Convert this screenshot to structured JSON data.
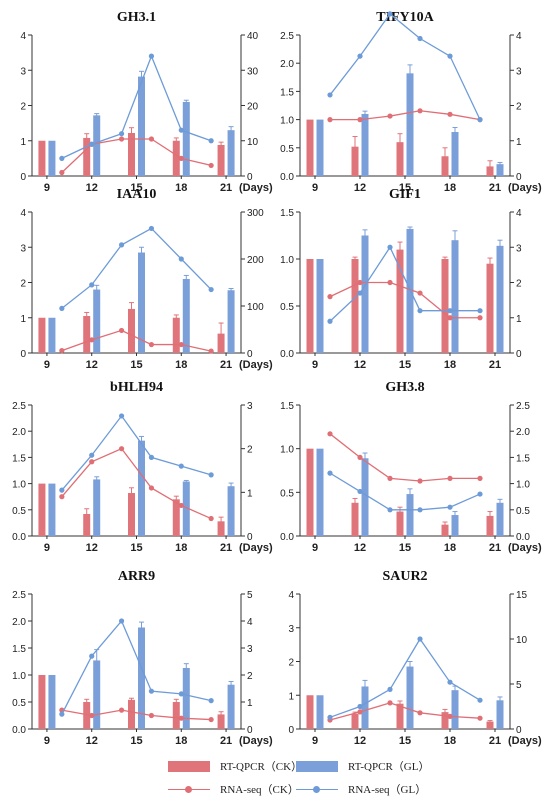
{
  "colors": {
    "bar_ck": "#e0747b",
    "bar_gl": "#7b9fd8",
    "line_ck": "#e06e75",
    "line_gl": "#6d9bd8",
    "axis": "#333333"
  },
  "legend": {
    "items": [
      {
        "key": "bar_ck",
        "kind": "bar",
        "label": "RT-QPCR（CK）"
      },
      {
        "key": "bar_gl",
        "kind": "bar",
        "label": "RT-QPCR（GL）"
      },
      {
        "key": "line_ck",
        "kind": "line",
        "label": "RNA-seq（CK）"
      },
      {
        "key": "line_gl",
        "kind": "line",
        "label": "RNA-seq（GL）"
      }
    ]
  },
  "chart_data": [
    {
      "type": "bar+line",
      "title": "GH3.1",
      "categories": [
        "9",
        "12",
        "15",
        "18",
        "21"
      ],
      "x_unit": "(Days)",
      "left_axis": {
        "ylim": [
          0,
          4
        ],
        "ticks": [
          "0",
          "1",
          "2",
          "3",
          "4"
        ]
      },
      "right_axis": {
        "ylim": [
          0,
          40
        ],
        "ticks": [
          "0",
          "10",
          "20",
          "30",
          "40"
        ]
      },
      "bars": [
        {
          "name": "RT-QPCR（CK）",
          "values": [
            1.0,
            1.08,
            1.22,
            1.0,
            0.88
          ],
          "errors": [
            0,
            0.12,
            0.15,
            0.08,
            0.08
          ]
        },
        {
          "name": "RT-QPCR（GL）",
          "values": [
            1.0,
            1.72,
            2.82,
            2.1,
            1.3
          ],
          "errors": [
            0,
            0.05,
            0.15,
            0.05,
            0.1
          ]
        }
      ],
      "lines": [
        {
          "name": "RNA-seq（CK）",
          "x": [
            10,
            12,
            14,
            16,
            18,
            20
          ],
          "values": [
            1,
            9,
            10.5,
            10.5,
            5,
            3
          ]
        },
        {
          "name": "RNA-seq（GL）",
          "x": [
            10,
            12,
            14,
            16,
            18,
            20
          ],
          "values": [
            5,
            9,
            12,
            34,
            13,
            10
          ]
        }
      ]
    },
    {
      "type": "bar+line",
      "title": "TIFY10A",
      "categories": [
        "9",
        "12",
        "15",
        "18",
        "21"
      ],
      "x_unit": "(Days)",
      "left_axis": {
        "ylim": [
          0,
          2.5
        ],
        "ticks": [
          "0.0",
          "0.5",
          "1.0",
          "1.5",
          "2.0",
          "2.5"
        ]
      },
      "right_axis": {
        "ylim": [
          0,
          4
        ],
        "ticks": [
          "0",
          "1",
          "2",
          "3",
          "4"
        ]
      },
      "bars": [
        {
          "name": "RT-QPCR（CK）",
          "values": [
            1.0,
            0.52,
            0.6,
            0.35,
            0.17
          ],
          "errors": [
            0,
            0.18,
            0.15,
            0.15,
            0.1
          ]
        },
        {
          "name": "RT-QPCR（GL）",
          "values": [
            1.0,
            1.1,
            1.82,
            0.78,
            0.21
          ],
          "errors": [
            0,
            0.05,
            0.15,
            0.08,
            0.03
          ]
        }
      ],
      "lines": [
        {
          "name": "RNA-seq（CK）",
          "x": [
            10,
            12,
            14,
            16,
            18,
            20
          ],
          "values": [
            1.6,
            1.6,
            1.7,
            1.85,
            1.75,
            1.6
          ]
        },
        {
          "name": "RNA-seq（GL）",
          "x": [
            10,
            12,
            14,
            16,
            18,
            20
          ],
          "values": [
            2.3,
            3.4,
            4.6,
            3.9,
            3.4,
            1.6
          ]
        }
      ]
    },
    {
      "type": "bar+line",
      "title": "IAA10",
      "categories": [
        "9",
        "12",
        "15",
        "18",
        "21"
      ],
      "x_unit": "(Days)",
      "left_axis": {
        "ylim": [
          0,
          4
        ],
        "ticks": [
          "0",
          "1",
          "2",
          "3",
          "4"
        ]
      },
      "right_axis": {
        "ylim": [
          0,
          300
        ],
        "ticks": [
          "0",
          "100",
          "200",
          "300"
        ]
      },
      "bars": [
        {
          "name": "RT-QPCR（CK）",
          "values": [
            1.0,
            1.05,
            1.25,
            1.0,
            0.55
          ],
          "errors": [
            0,
            0.1,
            0.18,
            0.08,
            0.3
          ]
        },
        {
          "name": "RT-QPCR（GL）",
          "values": [
            1.0,
            1.8,
            2.85,
            2.1,
            1.78
          ],
          "errors": [
            0,
            0.12,
            0.15,
            0.1,
            0.05
          ]
        }
      ],
      "lines": [
        {
          "name": "RNA-seq（CK）",
          "x": [
            10,
            12,
            14,
            16,
            18,
            20
          ],
          "values": [
            5,
            28,
            48,
            18,
            18,
            4
          ]
        },
        {
          "name": "RNA-seq（GL）",
          "x": [
            10,
            12,
            14,
            16,
            18,
            20
          ],
          "values": [
            95,
            145,
            230,
            265,
            200,
            135
          ]
        }
      ]
    },
    {
      "type": "bar+line",
      "title": "GIF1",
      "categories": [
        "9",
        "12",
        "15",
        "18",
        "21"
      ],
      "x_unit": "",
      "left_axis": {
        "ylim": [
          0,
          1.5
        ],
        "ticks": [
          "0.0",
          "0.5",
          "1.0",
          "1.5"
        ]
      },
      "right_axis": {
        "ylim": [
          0,
          4
        ],
        "ticks": [
          "0",
          "1",
          "2",
          "3",
          "4"
        ]
      },
      "bars": [
        {
          "name": "RT-QPCR（CK）",
          "values": [
            1.0,
            1.0,
            1.1,
            1.0,
            0.95
          ],
          "errors": [
            0,
            0.02,
            0.08,
            0.02,
            0.06
          ]
        },
        {
          "name": "RT-QPCR（GL）",
          "values": [
            1.0,
            1.25,
            1.32,
            1.2,
            1.14
          ],
          "errors": [
            0,
            0.06,
            0.02,
            0.1,
            0.06
          ]
        }
      ],
      "lines": [
        {
          "name": "RNA-seq（CK）",
          "x": [
            10,
            12,
            14,
            16,
            18,
            20
          ],
          "values": [
            1.6,
            2.0,
            2.0,
            1.7,
            1.0,
            1.0
          ]
        },
        {
          "name": "RNA-seq（GL）",
          "x": [
            10,
            12,
            14,
            16,
            18,
            20
          ],
          "values": [
            0.9,
            1.7,
            3.0,
            1.2,
            1.2,
            1.2
          ]
        }
      ]
    },
    {
      "type": "bar+line",
      "title": "bHLH94",
      "categories": [
        "9",
        "12",
        "15",
        "18",
        "21"
      ],
      "x_unit": "(Days)",
      "left_axis": {
        "ylim": [
          0,
          2.5
        ],
        "ticks": [
          "0.0",
          "0.5",
          "1.0",
          "1.5",
          "2.0",
          "2.5"
        ]
      },
      "right_axis": {
        "ylim": [
          0,
          3
        ],
        "ticks": [
          "0",
          "1",
          "2",
          "3"
        ]
      },
      "bars": [
        {
          "name": "RT-QPCR（CK）",
          "values": [
            1.0,
            0.42,
            0.82,
            0.7,
            0.28
          ],
          "errors": [
            0,
            0.1,
            0.1,
            0.06,
            0.08
          ]
        },
        {
          "name": "RT-QPCR（GL）",
          "values": [
            1.0,
            1.08,
            1.82,
            1.04,
            0.95
          ],
          "errors": [
            0,
            0.05,
            0.08,
            0.02,
            0.06
          ]
        }
      ],
      "lines": [
        {
          "name": "RNA-seq（CK）",
          "x": [
            10,
            12,
            14,
            16,
            18,
            20
          ],
          "values": [
            0.9,
            1.7,
            2.0,
            1.1,
            0.7,
            0.4
          ]
        },
        {
          "name": "RNA-seq（GL）",
          "x": [
            10,
            12,
            14,
            16,
            18,
            20
          ],
          "values": [
            1.05,
            1.85,
            2.75,
            1.8,
            1.6,
            1.4
          ]
        }
      ]
    },
    {
      "type": "bar+line",
      "title": "GH3.8",
      "categories": [
        "9",
        "12",
        "15",
        "18",
        "21"
      ],
      "x_unit": "(Days)",
      "left_axis": {
        "ylim": [
          0,
          1.5
        ],
        "ticks": [
          "0.0",
          "0.5",
          "1.0",
          "1.5"
        ]
      },
      "right_axis": {
        "ylim": [
          0,
          2.5
        ],
        "ticks": [
          "0.0",
          "0.5",
          "1.0",
          "1.5",
          "2.0",
          "2.5"
        ]
      },
      "bars": [
        {
          "name": "RT-QPCR（CK）",
          "values": [
            1.0,
            0.38,
            0.28,
            0.13,
            0.23
          ],
          "errors": [
            0,
            0.05,
            0.05,
            0.03,
            0.05
          ]
        },
        {
          "name": "RT-QPCR（GL）",
          "values": [
            1.0,
            0.89,
            0.48,
            0.24,
            0.38
          ],
          "errors": [
            0,
            0.06,
            0.06,
            0.04,
            0.04
          ]
        }
      ],
      "lines": [
        {
          "name": "RNA-seq（CK）",
          "x": [
            10,
            12,
            14,
            16,
            18,
            20
          ],
          "values": [
            1.95,
            1.5,
            1.1,
            1.05,
            1.1,
            1.1
          ]
        },
        {
          "name": "RNA-seq（GL）",
          "x": [
            10,
            12,
            14,
            16,
            18,
            20
          ],
          "values": [
            1.2,
            0.85,
            0.5,
            0.5,
            0.55,
            0.8
          ]
        }
      ]
    },
    {
      "type": "bar+line",
      "title": "ARR9",
      "categories": [
        "9",
        "12",
        "15",
        "18",
        "21"
      ],
      "x_unit": "(Days)",
      "left_axis": {
        "ylim": [
          0,
          2.5
        ],
        "ticks": [
          "0.0",
          "0.5",
          "1.0",
          "1.5",
          "2.0",
          "2.5"
        ]
      },
      "right_axis": {
        "ylim": [
          0,
          5
        ],
        "ticks": [
          "0",
          "1",
          "2",
          "3",
          "4",
          "5"
        ]
      },
      "bars": [
        {
          "name": "RT-QPCR（CK）",
          "values": [
            1.0,
            0.5,
            0.54,
            0.5,
            0.27
          ],
          "errors": [
            0,
            0.05,
            0.03,
            0.05,
            0.05
          ]
        },
        {
          "name": "RT-QPCR（GL）",
          "values": [
            1.0,
            1.27,
            1.88,
            1.13,
            0.82
          ],
          "errors": [
            0,
            0.2,
            0.1,
            0.08,
            0.06
          ]
        }
      ],
      "lines": [
        {
          "name": "RNA-seq（CK）",
          "x": [
            10,
            12,
            14,
            16,
            18,
            20
          ],
          "values": [
            0.7,
            0.5,
            0.7,
            0.5,
            0.4,
            0.35
          ]
        },
        {
          "name": "RNA-seq（GL）",
          "x": [
            10,
            12,
            14,
            16,
            18,
            20
          ],
          "values": [
            0.55,
            2.7,
            4.0,
            1.4,
            1.3,
            1.05
          ]
        }
      ]
    },
    {
      "type": "bar+line",
      "title": "SAUR2",
      "categories": [
        "9",
        "12",
        "15",
        "18",
        "21"
      ],
      "x_unit": "(Days)",
      "left_axis": {
        "ylim": [
          0,
          4
        ],
        "ticks": [
          "0",
          "1",
          "2",
          "3",
          "4"
        ]
      },
      "right_axis": {
        "ylim": [
          0,
          15
        ],
        "ticks": [
          "0",
          "5",
          "10",
          "15"
        ]
      },
      "bars": [
        {
          "name": "RT-QPCR（CK）",
          "values": [
            1.0,
            0.45,
            0.75,
            0.5,
            0.22
          ],
          "errors": [
            0,
            0.05,
            0.08,
            0.08,
            0.03
          ]
        },
        {
          "name": "RT-QPCR（GL）",
          "values": [
            1.0,
            1.26,
            1.85,
            1.15,
            0.85
          ],
          "errors": [
            0,
            0.18,
            0.15,
            0.12,
            0.1
          ]
        }
      ],
      "lines": [
        {
          "name": "RNA-seq（CK）",
          "x": [
            10,
            12,
            14,
            16,
            18,
            20
          ],
          "values": [
            1.0,
            1.9,
            2.9,
            1.8,
            1.4,
            1.2
          ]
        },
        {
          "name": "RNA-seq（GL）",
          "x": [
            10,
            12,
            14,
            16,
            18,
            20
          ],
          "values": [
            1.3,
            2.5,
            4.4,
            10.0,
            5.2,
            3.2
          ]
        }
      ]
    }
  ]
}
